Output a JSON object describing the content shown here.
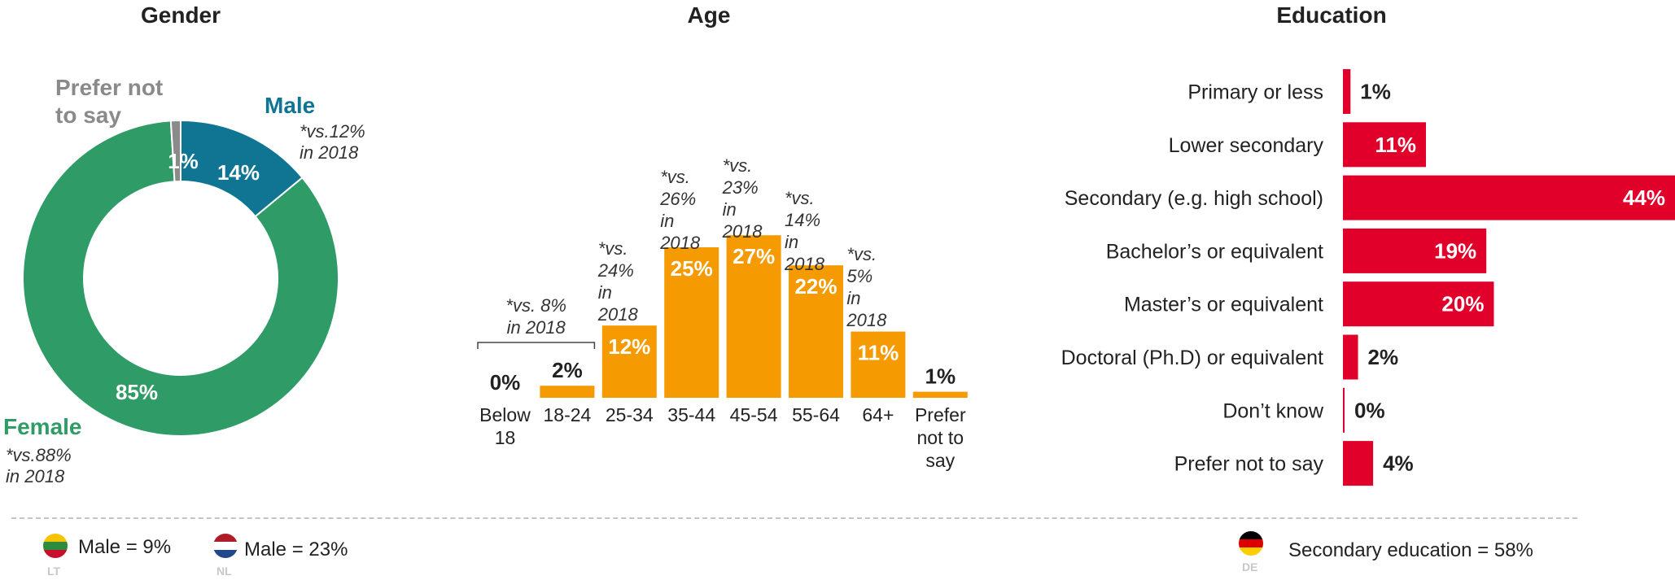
{
  "chart_data": [
    {
      "type": "pie",
      "title": "Gender",
      "slices": [
        {
          "label": "Male",
          "value": 14,
          "display": "14%",
          "color": "#0f7593"
        },
        {
          "label": "Female",
          "value": 85,
          "display": "85%",
          "color": "#2f9c67"
        },
        {
          "label": "Prefer not to say",
          "value": 1,
          "display": "1%",
          "color": "#8a8a8a"
        }
      ],
      "labels": {
        "male": "Male",
        "female": "Female",
        "prefer_line1": "Prefer not",
        "prefer_line2": "to say"
      },
      "annotations": {
        "male_line1": "*vs.12%",
        "male_line2": "in 2018",
        "female_line1": "*vs.88%",
        "female_line2": "in 2018"
      }
    },
    {
      "type": "bar",
      "title": "Age",
      "categories": [
        "Below 18",
        "18-24",
        "25-34",
        "35-44",
        "45-54",
        "55-64",
        "64+",
        "Prefer not to say"
      ],
      "category_lines": [
        [
          "Below",
          "18"
        ],
        [
          "18-24"
        ],
        [
          "25-34"
        ],
        [
          "35-44"
        ],
        [
          "45-54"
        ],
        [
          "55-64"
        ],
        [
          "64+"
        ],
        [
          "Prefer",
          "not to",
          "say"
        ]
      ],
      "values": [
        0,
        2,
        12,
        25,
        27,
        22,
        11,
        1
      ],
      "labels": [
        "0%",
        "2%",
        "12%",
        "25%",
        "27%",
        "22%",
        "11%",
        "1%"
      ],
      "color": "#f59a00",
      "ylim": [
        0,
        30
      ],
      "annotations": [
        {
          "lines": [
            "*vs. 8%",
            "in 2018"
          ]
        },
        {
          "lines": [
            "*vs.",
            "24%",
            " in",
            "2018"
          ]
        },
        {
          "lines": [
            "*vs.",
            "26%",
            " in",
            "2018"
          ]
        },
        {
          "lines": [
            "*vs.",
            "23%",
            " in",
            "2018"
          ]
        },
        {
          "lines": [
            "*vs.",
            "14%",
            " in",
            "2018"
          ]
        },
        {
          "lines": [
            "*vs.",
            "5%",
            " in",
            "2018"
          ]
        }
      ]
    },
    {
      "type": "bar",
      "orientation": "horizontal",
      "title": "Education",
      "categories": [
        "Primary or less",
        "Lower secondary",
        "Secondary (e.g. high school)",
        "Bachelor’s or equivalent",
        "Master’s or equivalent",
        "Doctoral (Ph.D) or equivalent",
        "Don’t know",
        "Prefer not to say"
      ],
      "values": [
        1,
        11,
        44,
        19,
        20,
        2,
        0,
        4
      ],
      "labels": [
        "1%",
        "11%",
        "44%",
        "19%",
        "20%",
        "2%",
        "0%",
        "4%"
      ],
      "color": "#e0002a",
      "xlim": [
        0,
        44
      ]
    }
  ],
  "footer": [
    {
      "code": "LT",
      "text": "Male = 9%"
    },
    {
      "code": "NL",
      "text": "Male = 23%"
    },
    {
      "code": "DE",
      "text": "Secondary education = 58%"
    }
  ]
}
